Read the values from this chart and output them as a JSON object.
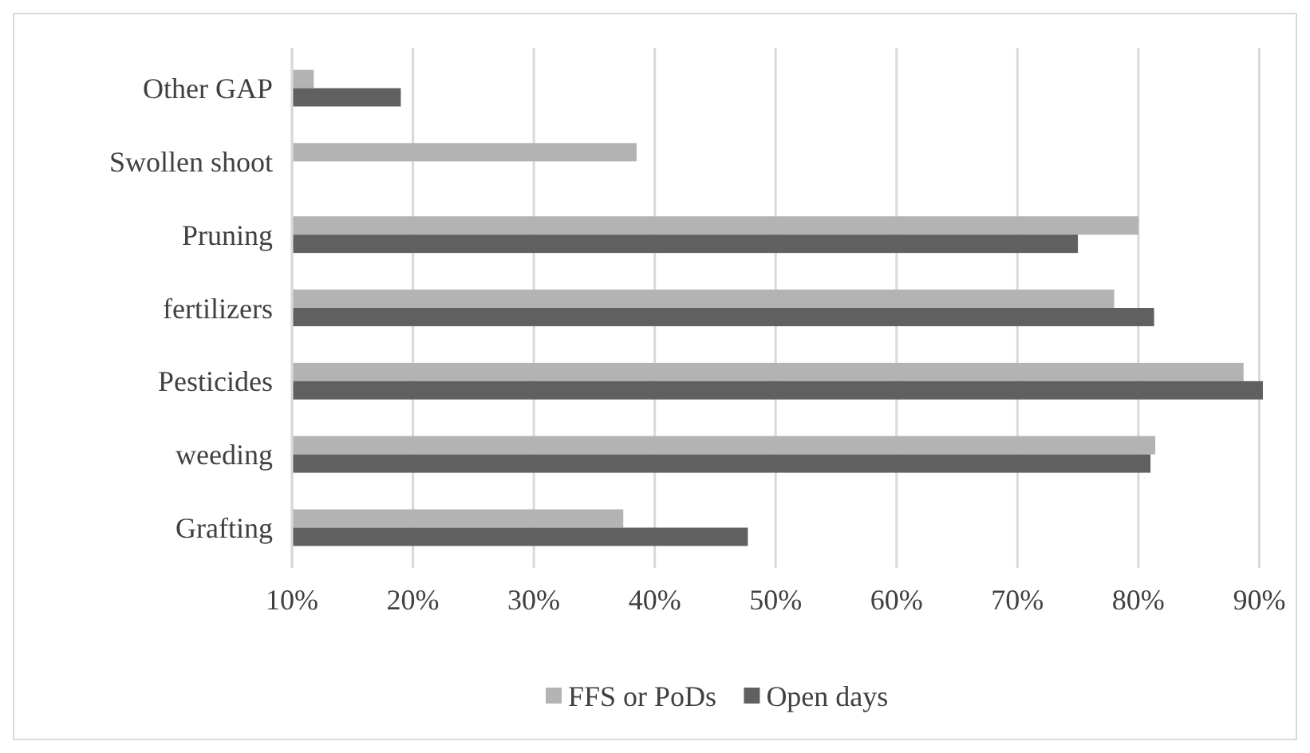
{
  "chart_data": {
    "type": "bar",
    "orientation": "horizontal",
    "categories": [
      "Other GAP",
      "Swollen shoot",
      "Pruning",
      "fertilizers",
      "Pesticides",
      "weeding",
      "Grafting"
    ],
    "series": [
      {
        "name": "FFS or PoDs",
        "color": "#b3b3b3",
        "values": [
          11.8,
          38.5,
          80.0,
          78.0,
          88.7,
          81.4,
          37.4
        ]
      },
      {
        "name": "Open days",
        "color": "#606060",
        "values": [
          19.0,
          null,
          75.0,
          81.3,
          90.3,
          81.0,
          47.7
        ]
      }
    ],
    "xlim": [
      10,
      90.5
    ],
    "xticks": [
      {
        "value": 10,
        "label": "10%"
      },
      {
        "value": 20,
        "label": "20%"
      },
      {
        "value": 30,
        "label": "30%"
      },
      {
        "value": 40,
        "label": "40%"
      },
      {
        "value": 50,
        "label": "50%"
      },
      {
        "value": 60,
        "label": "60%"
      },
      {
        "value": 70,
        "label": "70%"
      },
      {
        "value": 80,
        "label": "80%"
      },
      {
        "value": 90,
        "label": "90%"
      }
    ],
    "grid": "x",
    "legend": "bottom"
  }
}
